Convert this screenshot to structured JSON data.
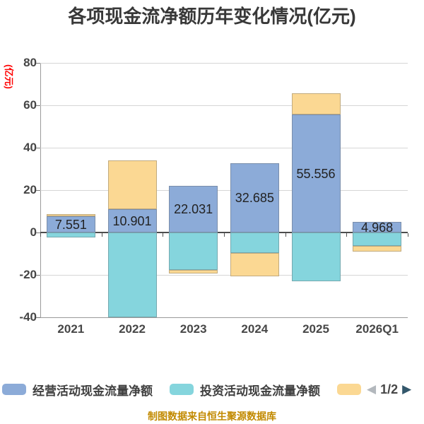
{
  "page": {
    "title": "各项现金流净额历年变化情况(亿元)",
    "footer_credit": "制图数据来自恒生聚源数据库"
  },
  "chart_data": {
    "type": "bar",
    "stacked": true,
    "title": "各项现金流净额历年变化情况(亿元)",
    "y_unit_label": "(亿元)",
    "categories": [
      "2021",
      "2022",
      "2023",
      "2024",
      "2025",
      "2026Q1"
    ],
    "yticks": [
      80,
      60,
      40,
      20,
      0,
      -20,
      -40
    ],
    "ylim": [
      -40,
      80
    ],
    "grid": true,
    "legend_position": "bottom",
    "series": [
      {
        "name": "经营活动现金流量净额",
        "color": "#8cabd8",
        "values": [
          7.551,
          10.901,
          22.031,
          32.685,
          55.556,
          4.968
        ],
        "labels": [
          "7.551",
          "10.901",
          "22.031",
          "32.685",
          "55.556",
          "4.968"
        ],
        "show_labels": true,
        "note": "values printed on chart"
      },
      {
        "name": "投资活动现金流量净额",
        "color": "#85d5dd",
        "values": [
          -2.2,
          -40.0,
          -17.6,
          -9.7,
          -23.0,
          -6.3
        ],
        "show_labels": false,
        "note": "estimated from bar heights; 2022 bar reaches the -40 axis minimum (clipped)"
      },
      {
        "name": "",
        "color": "#fbd893",
        "values": [
          1.1,
          23.0,
          -1.9,
          -10.9,
          10.0,
          -2.6
        ],
        "show_labels": false,
        "note": "estimated from bar heights; legend label hidden on page 1/2"
      }
    ]
  },
  "legend": {
    "item1_label": "经营活动现金流量净额",
    "item2_label": "投资活动现金流量净额",
    "item3_label": ""
  },
  "pager": {
    "left_arrow": "◀",
    "page_indicator": "1/2",
    "right_arrow": "▶"
  },
  "colors": {
    "title_text": "#383838",
    "axis_unit_red": "#ff0000",
    "footer_gold": "#c28a00",
    "grid_line": "#d6d6d6",
    "zero_line": "#4d4d4d",
    "axis_line": "#9a9a9a",
    "tick_text": "#454545",
    "bar_operating": "#8cabd8",
    "bar_investing": "#85d5dd",
    "bar_financing": "#fbd893",
    "pager_left_arrow": "#b3b8bd",
    "pager_right_arrow": "#33576b"
  }
}
